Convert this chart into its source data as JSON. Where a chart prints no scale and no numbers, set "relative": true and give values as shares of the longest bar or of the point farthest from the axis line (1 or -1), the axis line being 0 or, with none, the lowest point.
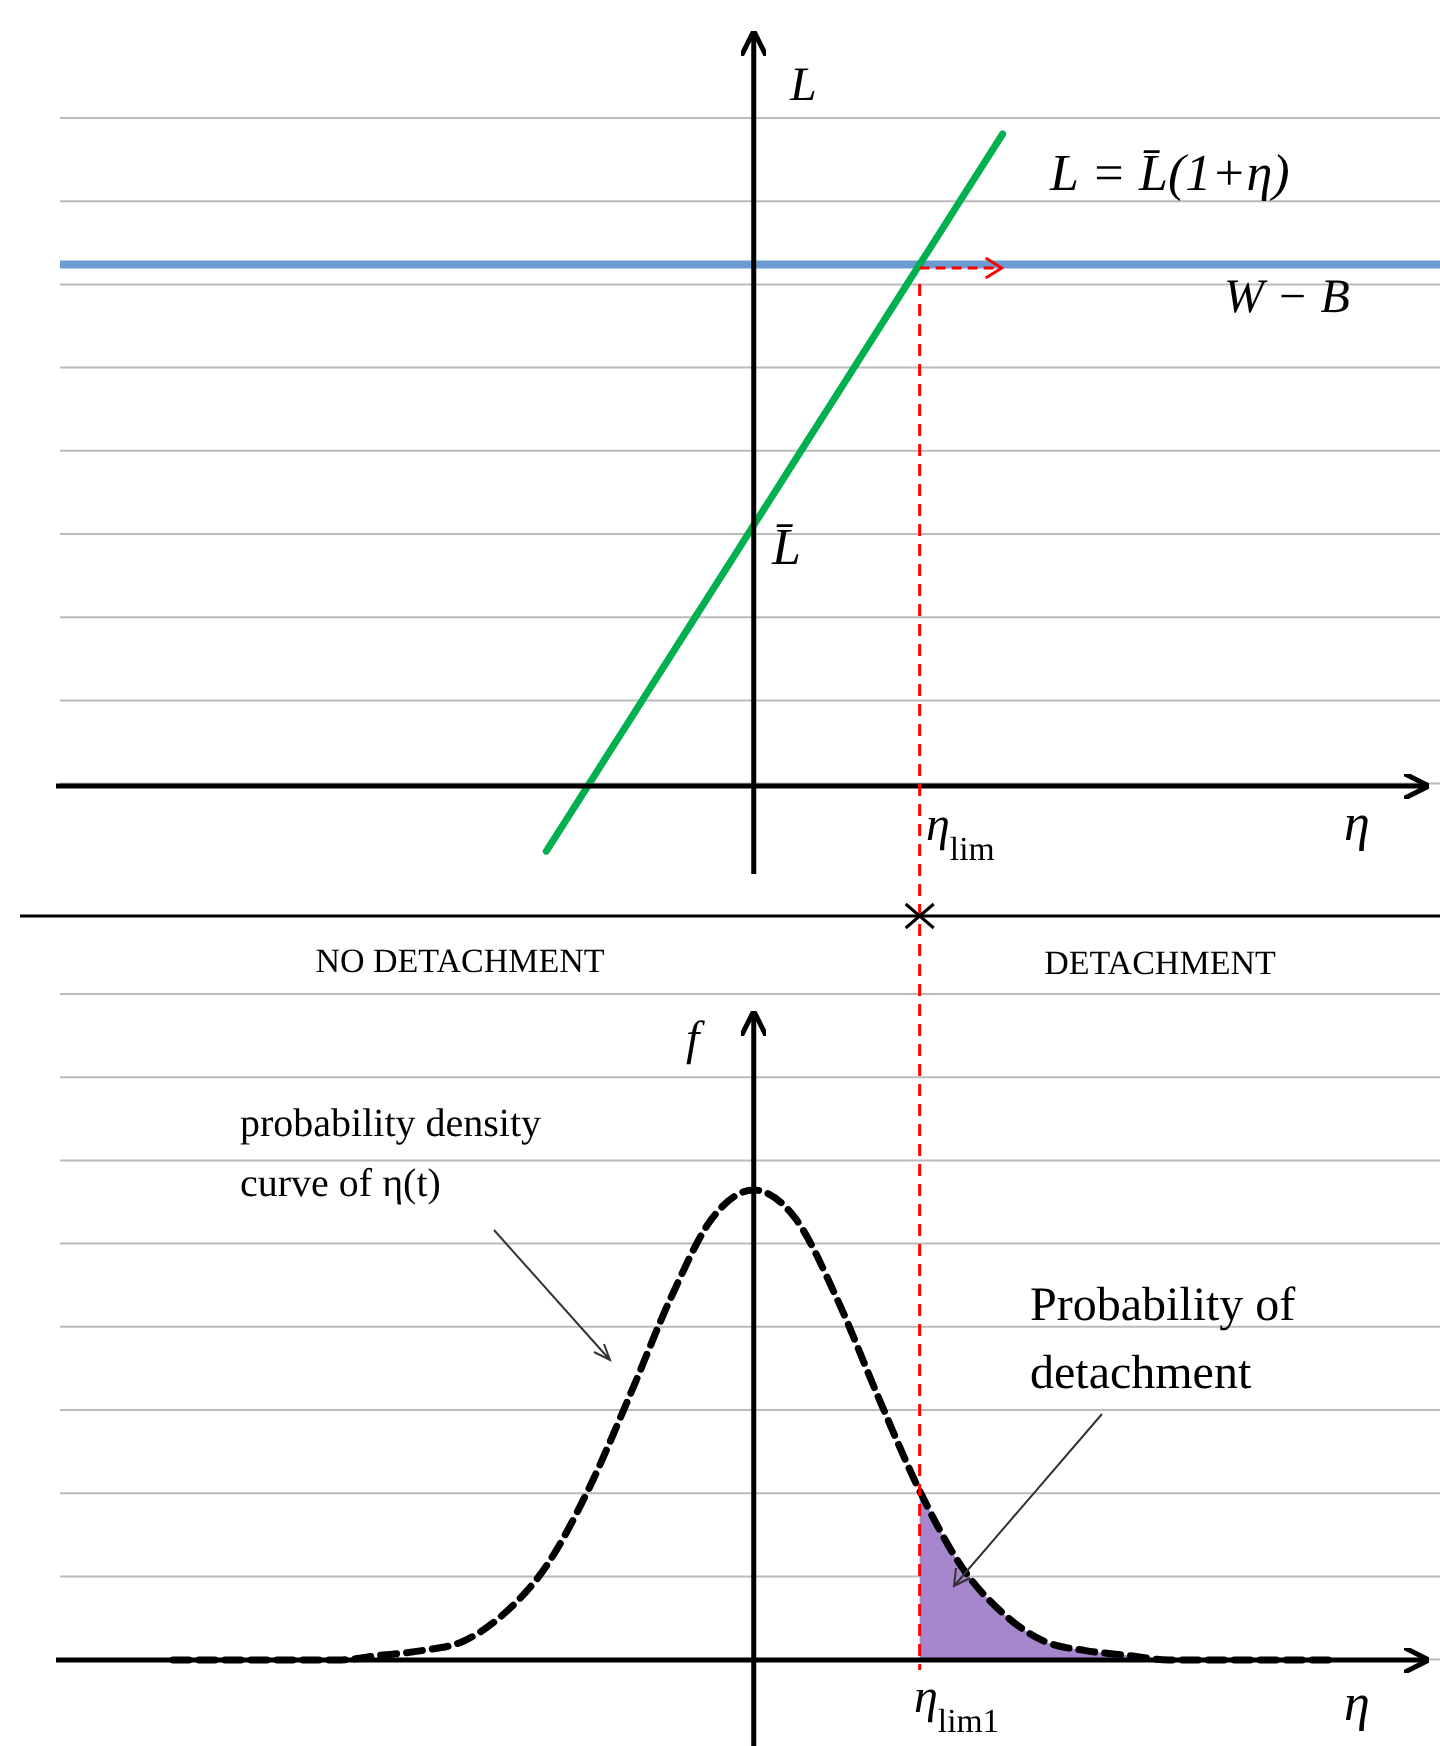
{
  "chart_data": [
    {
      "type": "line",
      "relative": true,
      "xlabel": "η",
      "ylabel": "L",
      "grid": true,
      "legend": false,
      "categories": [
        null,
        null,
        null,
        null,
        null,
        null,
        null,
        null,
        null,
        null,
        null,
        null,
        null,
        null,
        null,
        null,
        null,
        null,
        null,
        null,
        null,
        null,
        null,
        null,
        null,
        null,
        null,
        null,
        null,
        null,
        null,
        null
      ],
      "series": [
        {
          "name": "L = L̄(1+η)",
          "color": "#00b050",
          "values": [
            null,
            null,
            null,
            null,
            null,
            null,
            null,
            null,
            null,
            null,
            null,
            -0.1,
            0,
            0.1,
            0.2,
            0.3,
            0.4,
            0.5,
            0.6,
            0.7,
            0.8,
            0.9,
            1,
            null,
            null,
            null,
            null,
            null,
            null,
            null,
            null,
            null
          ]
        }
      ],
      "ref_lines": [
        {
          "axis": "y",
          "value": 0.8,
          "label": "W − B",
          "color": "#6b9bd1"
        }
      ],
      "annotations": [
        "L̄",
        "η$_{lim}$"
      ]
    },
    {
      "type": "line",
      "relative": true,
      "xlabel": "η",
      "ylabel": "f",
      "grid": true,
      "legend": false,
      "line_style": "dashed",
      "categories": [
        null,
        null,
        null,
        null,
        null,
        null,
        null,
        null,
        null,
        null,
        null,
        null,
        null,
        null,
        null,
        null,
        null,
        null,
        null,
        null,
        null,
        null,
        null,
        null,
        null,
        null,
        null,
        null,
        null,
        null,
        null,
        null
      ],
      "series": [
        {
          "color": "#000000",
          "values": [
            null,
            null,
            0,
            0,
            0,
            0,
            0,
            0.01,
            0.02,
            0.04,
            0.1,
            0.2,
            0.36,
            0.56,
            0.77,
            0.94,
            1,
            0.94,
            0.77,
            0.56,
            0.36,
            0.2,
            0.1,
            0.04,
            0.02,
            0.01,
            0,
            0,
            0,
            0,
            0,
            null
          ]
        },
        {
          "type": "area",
          "color": "#a686cc",
          "values": [
            null,
            null,
            null,
            null,
            null,
            null,
            null,
            null,
            null,
            null,
            null,
            null,
            null,
            null,
            null,
            null,
            null,
            null,
            null,
            null,
            0.36,
            0.2,
            0.1,
            0.04,
            0.02,
            0.01,
            0,
            0,
            0,
            0,
            0,
            null
          ]
        }
      ],
      "annotations": [
        "NO DETACHMENT",
        "DETACHMENT",
        "probability density curve of η(t)",
        "Probability of detachment",
        "η$_{lim1}$"
      ]
    }
  ]
}
